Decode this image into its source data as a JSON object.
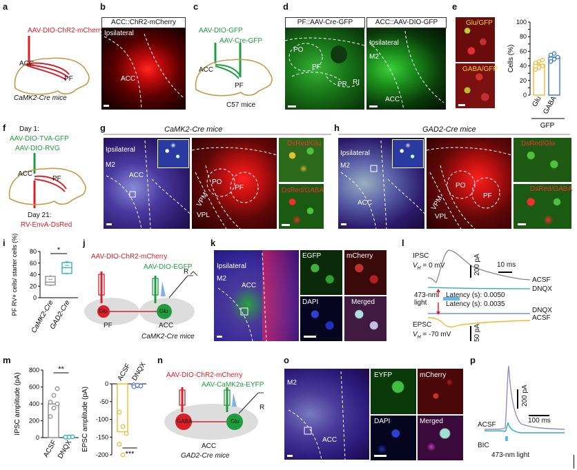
{
  "panels": {
    "a": {
      "letter": "a",
      "vector": "AAV-DIO-ChR2-mCherry",
      "acc": "ACC",
      "pf": "PF",
      "mice": "CaMK2-Cre mice"
    },
    "b": {
      "letter": "b",
      "title": "ACC::ChR2-mCherry",
      "ipsi": "Ipsilateral",
      "acc": "ACC"
    },
    "c": {
      "letter": "c",
      "v1": "AAV-DIO-GFP",
      "v2": "AAV-Cre-GFP",
      "acc": "ACC",
      "pf": "PF",
      "mice": "C57 mice"
    },
    "d": {
      "letter": "d",
      "title1": "PF::AAV-Cre-GFP",
      "title2": "ACC::AAV-DIO-GFP",
      "po": "PO",
      "pf": "PF",
      "pr": "PR",
      "ri": "RI",
      "ipsi": "Ipsilateral",
      "m2": "M2",
      "acc": "ACC"
    },
    "e": {
      "letter": "e",
      "lab1": "Glu/GFP",
      "lab2": "GABA/GFP"
    },
    "f": {
      "letter": "f",
      "day1": "Day 1:",
      "v1": "AAV-DIO-TVA-GFP",
      "v2": "AAV-DIO-RVG",
      "acc": "ACC",
      "pf": "PF",
      "day21": "Day 21:",
      "v3": "RV-EnvA-DsRed"
    },
    "g": {
      "letter": "g",
      "mice": "CaMK2-Cre mice",
      "ipsi": "Ipsilateral",
      "m2": "M2",
      "acc": "ACC",
      "po": "PO",
      "pf": "PF",
      "vpm": "VPM",
      "vpl": "VPL",
      "l1": "DsRed/Glu",
      "l2": "DsRed/GABA"
    },
    "h": {
      "letter": "h",
      "mice": "GAD2-Cre mice",
      "ipsi": "Ipsilateral",
      "m2": "M2",
      "acc": "ACC",
      "po": "PO",
      "pf": "PF",
      "vpm": "VPM",
      "vpl": "VPL",
      "l1": "DsRed/Glu",
      "l2": "DsRed/GABA"
    },
    "i": {
      "letter": "i",
      "sig": "*"
    },
    "j": {
      "letter": "j",
      "v1": "AAV-DIO-ChR2-mCherry",
      "v2": "AAV-DIO-EGFP",
      "r": "R",
      "glu1": "Glu",
      "glu2": "Glu",
      "pf": "PF",
      "acc": "ACC",
      "mice": "CaMK2-Cre mice"
    },
    "k": {
      "letter": "k",
      "ipsi": "Ipsilateral",
      "m2": "M2",
      "acc": "ACC",
      "c1": "EGFP",
      "c2": "mCherry",
      "c3": "DAPI",
      "c4": "Merged"
    },
    "l": {
      "letter": "l",
      "ipsc": "IPSC",
      "vh1": "V",
      "vh1sub": "H",
      "vh1val": " = 0 mV",
      "scale1": "200 pA",
      "time": "10 ms",
      "acsf1": "ACSF",
      "dnqx1": "DNQX",
      "light": "473-nm\nlight",
      "lat1": "Latency (s): 0.0050",
      "lat2": "Latency (s): 0.0035",
      "dnqx2": "DNQX",
      "acsf2": "ACSF",
      "epsc": "EPSC",
      "vh2val": " = -70 mV",
      "scale2": "50 pA"
    },
    "m": {
      "letter": "m",
      "sig1": "**",
      "sig2": "***"
    },
    "n": {
      "letter": "n",
      "v1": "AAV-DIO-ChR2-mCherry",
      "v2": "AAV-CaMK2a-EYFP",
      "r": "R",
      "gaba": "GABA",
      "glu": "Glu",
      "acc": "ACC",
      "mice": "GAD2-Cre mice"
    },
    "o": {
      "letter": "o",
      "m2": "M2",
      "acc": "ACC",
      "c1": "EYFP",
      "c2": "mCherry",
      "c3": "DAPI",
      "c4": "Merged"
    },
    "p": {
      "letter": "p",
      "scale": "200 pA",
      "time": "100 ms",
      "acsf": "ACSF",
      "bic": "BIC",
      "light": "473-nm light"
    }
  },
  "chart_data": [
    {
      "type": "bar",
      "id": "e",
      "categories": [
        "Glu",
        "GABA"
      ],
      "values": [
        42,
        52
      ],
      "points": [
        [
          35,
          38,
          40,
          44,
          46,
          48
        ],
        [
          46,
          49,
          52,
          55,
          57
        ]
      ],
      "ylabel": "Cells (%)",
      "xgroup": "GFP",
      "ylim": [
        0,
        100
      ],
      "yticks": [
        0,
        10,
        20,
        30,
        40,
        50,
        60,
        70,
        80,
        90,
        100
      ],
      "colors": [
        "#f2b830",
        "#3a78c8"
      ]
    },
    {
      "type": "box",
      "id": "i",
      "categories": [
        "CaMK2-Cre",
        "GAD2-Cre"
      ],
      "boxes": [
        {
          "q1": 22,
          "median": 27,
          "q3": 37,
          "min": 20,
          "max": 40,
          "points": [
            22,
            32,
            37
          ]
        },
        {
          "q1": 42,
          "median": 52,
          "q3": 61,
          "min": 40,
          "max": 64,
          "points": [
            42,
            56,
            62
          ]
        }
      ],
      "ylabel": "PF RV+ cells/ starter cells (%)",
      "ylim": [
        0,
        80
      ],
      "yticks": [
        0,
        20,
        40,
        60,
        80
      ],
      "colors": [
        "#888888",
        "#2ab0a6"
      ]
    },
    {
      "type": "bar",
      "id": "m1",
      "categories": [
        "ACSF",
        "DNQX"
      ],
      "values": [
        400,
        8
      ],
      "points": [
        [
          250,
          350,
          400,
          420,
          500,
          580
        ],
        [
          5,
          8,
          10,
          6,
          7
        ]
      ],
      "ylabel": "IPSC amplitude (pA)",
      "ylim": [
        0,
        800
      ],
      "yticks": [
        0,
        200,
        400,
        600,
        800
      ],
      "colors": [
        "#888888",
        "#2ab0a6"
      ]
    },
    {
      "type": "bar",
      "id": "m2",
      "categories": [
        "ACSF",
        "DNQX"
      ],
      "values": [
        -135,
        -5
      ],
      "points": [
        [
          -80,
          -120,
          -140,
          -170,
          -200
        ],
        [
          -3,
          -5,
          -6,
          -8,
          -4
        ]
      ],
      "ylabel": "EPSC amplitude (pA)",
      "ylim": [
        -200,
        0
      ],
      "yticks": [
        0,
        -50,
        -100,
        -150,
        -200
      ],
      "colors": [
        "#f2b830",
        "#5a7ad0"
      ]
    }
  ]
}
